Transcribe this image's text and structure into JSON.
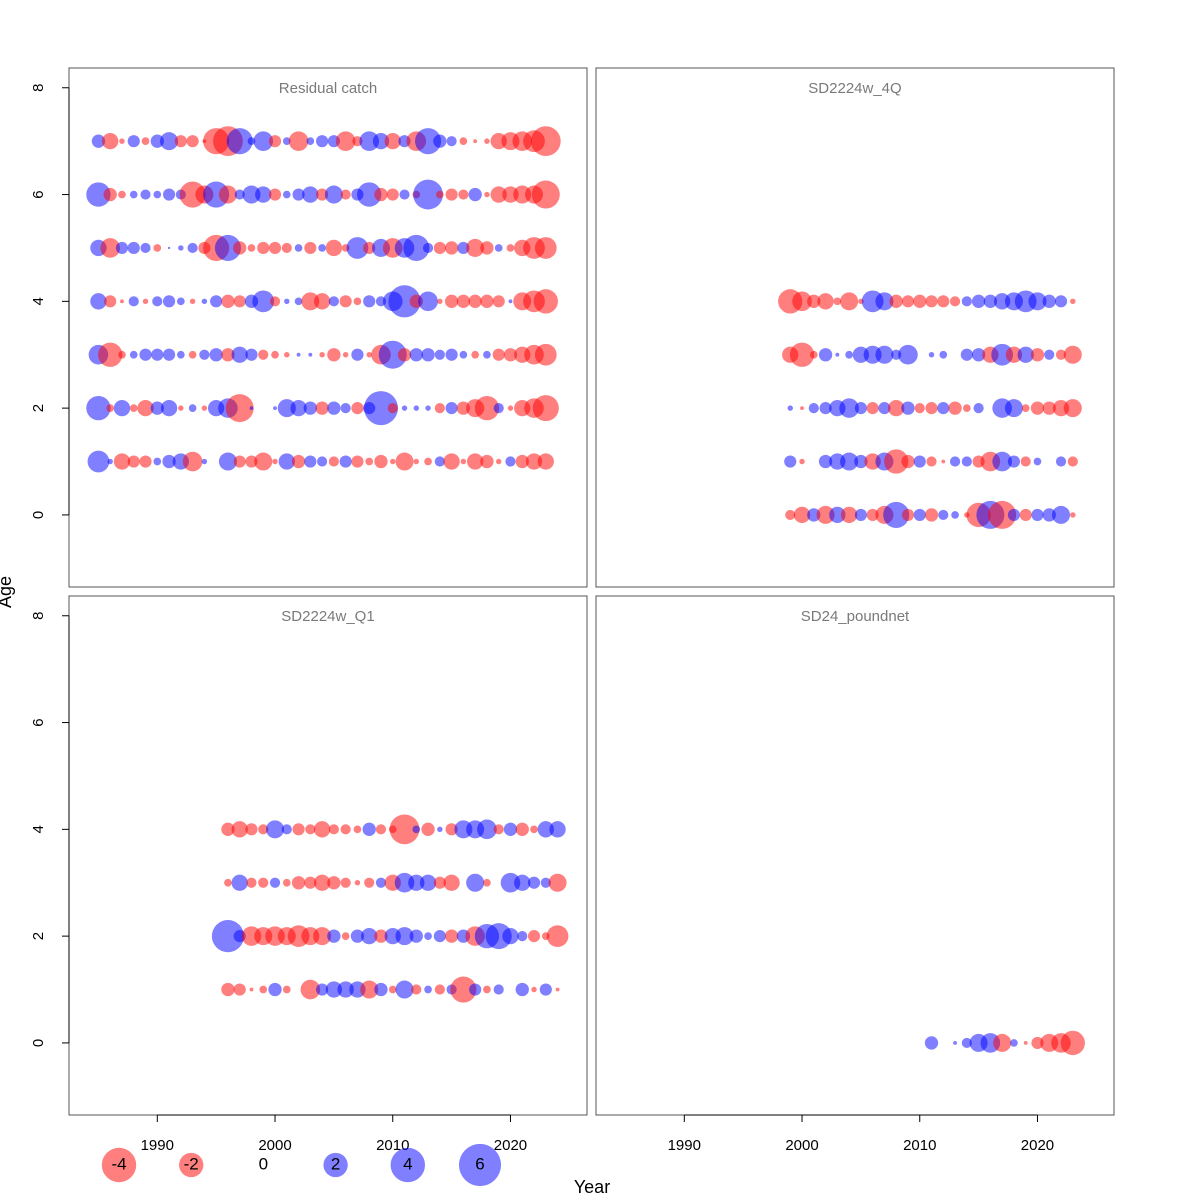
{
  "xlabel": "Year",
  "ylabel": "Age",
  "legend": {
    "values": [
      -4,
      -2,
      0,
      2,
      4,
      6
    ]
  },
  "negative_color": "#ff0000",
  "positive_color": "#0000ff",
  "opacity": 0.5,
  "chart_data": [
    {
      "type": "bubble",
      "title": "Residual catch",
      "x": [
        1985,
        1986,
        1987,
        1988,
        1989,
        1990,
        1991,
        1992,
        1993,
        1994,
        1995,
        1996,
        1997,
        1998,
        1999,
        2000,
        2001,
        2002,
        2003,
        2004,
        2005,
        2006,
        2007,
        2008,
        2009,
        2010,
        2011,
        2012,
        2013,
        2014,
        2015,
        2016,
        2017,
        2018,
        2019,
        2020,
        2021,
        2022,
        2023
      ],
      "y": [
        7,
        6,
        5,
        4,
        3,
        2,
        1
      ],
      "values": [
        [
          0.6,
          -0.9,
          -0.1,
          0.5,
          -0.2,
          0.6,
          1.1,
          -0.5,
          -0.5,
          -0.05,
          -2.3,
          -3.0,
          2.3,
          0.2,
          1.3,
          -0.5,
          0.2,
          -1.3,
          0.2,
          0.5,
          0.5,
          -1.3,
          -0.35,
          1.3,
          0.9,
          -0.9,
          0.5,
          -1.3,
          2.3,
          0.6,
          0.35,
          -0.2,
          -0.05,
          -0.1,
          -0.9,
          -1.1,
          -1.3,
          -1.6,
          -3.0
        ],
        [
          2.0,
          -0.6,
          -0.2,
          0.2,
          0.35,
          0.2,
          0.5,
          0.35,
          -2.3,
          -1.1,
          2.3,
          -1.1,
          0.35,
          1.1,
          0.9,
          -0.5,
          0.2,
          0.5,
          0.9,
          -0.5,
          1.1,
          -0.35,
          0.5,
          2.0,
          -0.6,
          -0.5,
          0.35,
          -0.2,
          3.0,
          -0.2,
          -0.5,
          -0.35,
          0.6,
          -0.1,
          -0.9,
          -0.9,
          -1.1,
          -1.1,
          -2.65
        ],
        [
          0.9,
          -1.3,
          0.5,
          0.5,
          0.35,
          -0.2,
          0.02,
          0.1,
          0.35,
          -0.5,
          -2.3,
          2.3,
          -0.6,
          -0.2,
          -0.5,
          -0.5,
          -0.35,
          0.2,
          -0.5,
          0.2,
          -0.9,
          -0.2,
          1.6,
          -0.5,
          1.1,
          -1.3,
          1.3,
          2.3,
          0.35,
          -0.5,
          -0.6,
          0.5,
          -1.1,
          -0.6,
          0.2,
          -0.2,
          -0.9,
          -1.6,
          -1.6
        ],
        [
          0.9,
          -0.5,
          -0.05,
          0.35,
          -0.1,
          0.35,
          0.5,
          0.2,
          -0.1,
          0.1,
          0.5,
          -0.6,
          -0.5,
          0.6,
          1.6,
          -0.35,
          0.1,
          0.2,
          -1.1,
          -0.9,
          0.35,
          -0.5,
          -0.2,
          0.5,
          0.35,
          1.3,
          3.5,
          -0.6,
          1.3,
          -0.1,
          -0.6,
          -0.6,
          -0.6,
          -0.6,
          -0.5,
          0.05,
          -1.1,
          -1.6,
          -2.0
        ],
        [
          1.3,
          -2.0,
          -0.2,
          0.2,
          0.5,
          0.5,
          0.5,
          0.2,
          -0.2,
          0.35,
          0.6,
          -0.6,
          0.9,
          0.5,
          -0.35,
          -0.2,
          -0.1,
          0.05,
          0.05,
          -0.1,
          -0.6,
          -0.1,
          0.5,
          -0.1,
          -1.3,
          2.65,
          -0.6,
          0.6,
          0.6,
          0.35,
          0.5,
          0.2,
          -0.2,
          0.2,
          -0.5,
          -0.6,
          -0.9,
          -1.3,
          -1.6
        ],
        [
          2.0,
          -0.2,
          0.9,
          -0.2,
          -0.9,
          0.6,
          0.9,
          -0.1,
          0.2,
          -0.1,
          0.9,
          1.3,
          -2.65,
          0.05,
          null,
          0.05,
          1.1,
          0.9,
          0.6,
          -0.6,
          0.6,
          0.35,
          -0.5,
          0.5,
          3.9,
          -0.35,
          0.1,
          0.1,
          0.1,
          -0.35,
          0.5,
          -0.6,
          -1.1,
          -2.0,
          0.35,
          -0.1,
          -0.9,
          -1.3,
          -2.3
        ],
        [
          1.6,
          0.1,
          -0.9,
          -0.5,
          -0.5,
          0.2,
          0.6,
          0.9,
          -1.3,
          0.1,
          null,
          1.1,
          -0.5,
          -0.5,
          -1.1,
          -0.1,
          0.9,
          -0.6,
          0.5,
          0.35,
          -0.35,
          0.5,
          -0.5,
          -0.2,
          -0.6,
          -0.1,
          -1.1,
          -0.1,
          -0.2,
          0.35,
          -0.9,
          -0.1,
          -0.9,
          -0.6,
          -0.1,
          0.35,
          -0.6,
          -0.9,
          -0.9
        ]
      ],
      "xlim": [
        1982.5,
        2026.5
      ],
      "ylim": [
        -1.35,
        8.37
      ],
      "yticks": [
        0,
        2,
        4,
        6,
        8
      ]
    },
    {
      "type": "bubble",
      "title": "SD2224w_4Q",
      "x": [
        1999,
        2000,
        2001,
        2002,
        2003,
        2004,
        2005,
        2006,
        2007,
        2008,
        2009,
        2010,
        2011,
        2012,
        2013,
        2014,
        2015,
        2016,
        2017,
        2018,
        2019,
        2020,
        2021,
        2022,
        2023
      ],
      "y": [
        4,
        3,
        2,
        1,
        0
      ],
      "values": [
        [
          -2.0,
          -1.3,
          -0.6,
          -0.9,
          -0.2,
          -1.1,
          -0.1,
          1.6,
          1.1,
          -0.6,
          -0.5,
          -0.6,
          -0.5,
          -0.5,
          -0.35,
          0.35,
          0.6,
          0.6,
          0.9,
          1.1,
          1.6,
          1.1,
          0.6,
          0.5,
          -0.1
        ],
        [
          -0.9,
          -2.0,
          -0.2,
          0.6,
          0.05,
          0.2,
          0.9,
          1.1,
          1.1,
          0.35,
          1.3,
          null,
          0.1,
          0.2,
          null,
          0.5,
          0.6,
          -0.9,
          1.6,
          -0.9,
          0.9,
          -0.6,
          0.35,
          -0.35,
          -1.1
        ],
        [
          0.1,
          -0.05,
          0.35,
          0.5,
          0.9,
          1.3,
          0.5,
          -0.5,
          0.5,
          -0.9,
          0.6,
          -0.35,
          -0.5,
          0.5,
          -0.6,
          -0.2,
          0.35,
          null,
          1.3,
          1.1,
          -0.2,
          -0.6,
          -0.6,
          -0.9,
          -1.1
        ],
        [
          0.5,
          -0.1,
          null,
          0.6,
          0.9,
          1.1,
          0.6,
          -0.9,
          1.1,
          -2.0,
          -0.6,
          0.5,
          -0.35,
          -0.05,
          0.35,
          0.35,
          -0.5,
          -1.3,
          1.3,
          0.5,
          -0.35,
          0.2,
          null,
          0.35,
          -0.35
        ],
        [
          -0.35,
          -0.9,
          0.6,
          -1.1,
          0.9,
          -0.9,
          0.5,
          -0.5,
          -1.1,
          2.3,
          -0.5,
          0.5,
          -0.6,
          0.35,
          0.2,
          -0.1,
          -2.0,
          2.65,
          -2.65,
          0.5,
          -0.5,
          0.5,
          0.6,
          1.1,
          -0.1
        ]
      ],
      "xlim": [
        1982.5,
        2026.5
      ],
      "ylim": [
        -1.35,
        8.37
      ]
    },
    {
      "type": "bubble",
      "title": "SD2224w_Q1",
      "x": [
        1996,
        1997,
        1998,
        1999,
        2000,
        2001,
        2002,
        2003,
        2004,
        2005,
        2006,
        2007,
        2008,
        2009,
        2010,
        2011,
        2012,
        2013,
        2014,
        2015,
        2016,
        2017,
        2018,
        2019,
        2020,
        2021,
        2022,
        2023,
        2024
      ],
      "y": [
        4,
        3,
        2,
        1
      ],
      "values": [
        [
          -0.6,
          -0.9,
          -0.5,
          -0.35,
          1.1,
          0.35,
          -0.5,
          -0.35,
          -0.9,
          -0.35,
          -0.35,
          -0.2,
          0.6,
          -0.35,
          -0.2,
          -3.0,
          0.2,
          -0.6,
          0.1,
          -0.5,
          1.1,
          1.1,
          1.3,
          -0.35,
          0.6,
          -0.6,
          -0.2,
          0.9,
          0.9
        ],
        [
          -0.2,
          0.9,
          -0.35,
          -0.35,
          0.35,
          -0.2,
          -0.6,
          -0.5,
          -0.9,
          -0.6,
          -0.35,
          -0.1,
          -0.35,
          0.35,
          -0.9,
          1.3,
          0.9,
          0.9,
          -0.5,
          -0.9,
          null,
          1.1,
          -0.2,
          null,
          1.3,
          0.9,
          0.5,
          0.35,
          -1.1
        ],
        [
          3.5,
          0.5,
          -1.3,
          -1.1,
          -1.3,
          -1.1,
          -1.6,
          -1.1,
          -1.1,
          0.6,
          -0.2,
          0.6,
          0.9,
          -0.6,
          0.9,
          1.1,
          0.6,
          0.2,
          0.5,
          -0.6,
          0.6,
          -1.3,
          2.0,
          2.3,
          0.9,
          0.35,
          -0.5,
          -0.2,
          -1.6
        ],
        [
          -0.6,
          -0.5,
          -0.05,
          -0.2,
          0.6,
          -0.2,
          null,
          -1.3,
          0.5,
          0.9,
          0.9,
          0.9,
          -1.1,
          0.6,
          -0.2,
          1.1,
          -0.35,
          0.2,
          -0.35,
          0.35,
          -2.3,
          0.5,
          -0.2,
          0.35,
          null,
          0.6,
          -0.1,
          0.5,
          -0.05
        ]
      ],
      "xlim": [
        1982.5,
        2026.5
      ],
      "ylim": [
        -1.35,
        8.37
      ],
      "xticks": [
        1990,
        2000,
        2010,
        2020
      ],
      "yticks": [
        0,
        2,
        4,
        6,
        8
      ]
    },
    {
      "type": "bubble",
      "title": "SD24_poundnet",
      "x": [
        2011,
        2012,
        2013,
        2014,
        2015,
        2016,
        2017,
        2018,
        2019,
        2020,
        2021,
        2022,
        2023
      ],
      "y": [
        0
      ],
      "values": [
        [
          0.6,
          null,
          0.05,
          0.35,
          1.1,
          1.3,
          -1.1,
          0.2,
          -0.05,
          -0.5,
          -1.1,
          -1.3,
          -2.0
        ]
      ],
      "xlim": [
        1982.5,
        2026.5
      ],
      "ylim": [
        -1.35,
        8.37
      ],
      "xticks": [
        1990,
        2000,
        2010,
        2020
      ]
    }
  ]
}
